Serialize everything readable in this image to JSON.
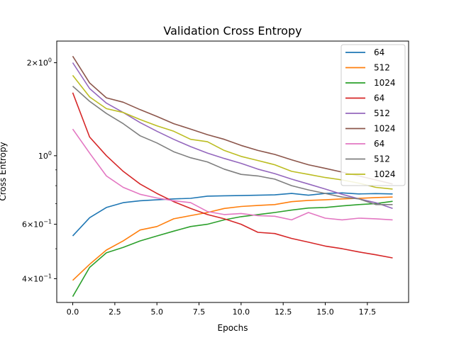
{
  "chart_data": {
    "type": "line",
    "title": "Validation Cross Entropy",
    "xlabel": "Epochs",
    "ylabel": "Cross Entropy",
    "yscale": "log",
    "xlim": [
      -0.95,
      19.95
    ],
    "ylim": [
      0.335,
      2.35
    ],
    "grid": false,
    "legend_position": "top-right",
    "x": [
      0,
      1,
      2,
      3,
      4,
      5,
      6,
      7,
      8,
      9,
      10,
      11,
      12,
      13,
      14,
      15,
      16,
      17,
      18,
      19
    ],
    "x_ticks": [
      {
        "value": 0,
        "label": "0.0"
      },
      {
        "value": 2.5,
        "label": "2.5"
      },
      {
        "value": 5,
        "label": "5.0"
      },
      {
        "value": 7.5,
        "label": "7.5"
      },
      {
        "value": 10,
        "label": "10.0"
      },
      {
        "value": 12.5,
        "label": "12.5"
      },
      {
        "value": 15,
        "label": "15.0"
      },
      {
        "value": 17.5,
        "label": "17.5"
      }
    ],
    "y_ticks_major": [
      {
        "value": 2.0,
        "base": "2×10",
        "exp": "0"
      },
      {
        "value": 1.0,
        "base": "10",
        "exp": "0"
      },
      {
        "value": 0.6,
        "base": "6×10",
        "exp": "−1"
      },
      {
        "value": 0.4,
        "base": "4×10",
        "exp": "−1"
      }
    ],
    "y_ticks_minor": [
      0.5,
      0.7,
      0.8,
      0.9
    ],
    "series": [
      {
        "name": "64",
        "color": "#1f77b4",
        "values": [
          0.55,
          0.63,
          0.68,
          0.705,
          0.715,
          0.72,
          0.725,
          0.728,
          0.74,
          0.742,
          0.743,
          0.745,
          0.747,
          0.755,
          0.745,
          0.755,
          0.758,
          0.752,
          0.754,
          0.752
        ]
      },
      {
        "name": "512",
        "color": "#ff7f0e",
        "values": [
          0.395,
          0.445,
          0.495,
          0.53,
          0.575,
          0.59,
          0.625,
          0.64,
          0.655,
          0.675,
          0.685,
          0.69,
          0.695,
          0.71,
          0.717,
          0.72,
          0.725,
          0.728,
          0.732,
          0.735
        ]
      },
      {
        "name": "1024",
        "color": "#2ca02c",
        "values": [
          0.35,
          0.435,
          0.485,
          0.505,
          0.53,
          0.55,
          0.57,
          0.59,
          0.6,
          0.62,
          0.635,
          0.645,
          0.655,
          0.667,
          0.677,
          0.68,
          0.688,
          0.695,
          0.7,
          0.712
        ]
      },
      {
        "name": "64",
        "color": "#d62728",
        "values": [
          1.6,
          1.15,
          1.0,
          0.89,
          0.81,
          0.755,
          0.71,
          0.675,
          0.645,
          0.625,
          0.6,
          0.565,
          0.56,
          0.54,
          0.525,
          0.51,
          0.5,
          0.488,
          0.478,
          0.467
        ]
      },
      {
        "name": "512",
        "color": "#9467bd",
        "values": [
          2.0,
          1.65,
          1.48,
          1.38,
          1.28,
          1.2,
          1.13,
          1.07,
          1.02,
          0.98,
          0.945,
          0.905,
          0.875,
          0.84,
          0.81,
          0.78,
          0.75,
          0.725,
          0.705,
          0.675
        ]
      },
      {
        "name": "1024",
        "color": "#8c564b",
        "values": [
          2.1,
          1.72,
          1.54,
          1.49,
          1.41,
          1.34,
          1.27,
          1.22,
          1.17,
          1.13,
          1.08,
          1.04,
          1.01,
          0.97,
          0.935,
          0.91,
          0.885,
          0.86,
          0.835,
          0.81
        ]
      },
      {
        "name": "64",
        "color": "#e377c2",
        "values": [
          1.22,
          1.02,
          0.86,
          0.79,
          0.75,
          0.73,
          0.715,
          0.705,
          0.66,
          0.645,
          0.65,
          0.64,
          0.637,
          0.62,
          0.655,
          0.628,
          0.62,
          0.628,
          0.625,
          0.62
        ]
      },
      {
        "name": "512",
        "color": "#7f7f7f",
        "values": [
          1.68,
          1.5,
          1.37,
          1.27,
          1.16,
          1.1,
          1.03,
          0.985,
          0.955,
          0.905,
          0.87,
          0.86,
          0.84,
          0.8,
          0.775,
          0.755,
          0.735,
          0.725,
          0.695,
          0.695
        ]
      },
      {
        "name": "1024",
        "color": "#bcbd22",
        "values": [
          1.82,
          1.55,
          1.42,
          1.38,
          1.31,
          1.25,
          1.2,
          1.13,
          1.11,
          1.04,
          0.995,
          0.965,
          0.935,
          0.89,
          0.87,
          0.85,
          0.835,
          0.815,
          0.79,
          0.78
        ]
      }
    ]
  }
}
